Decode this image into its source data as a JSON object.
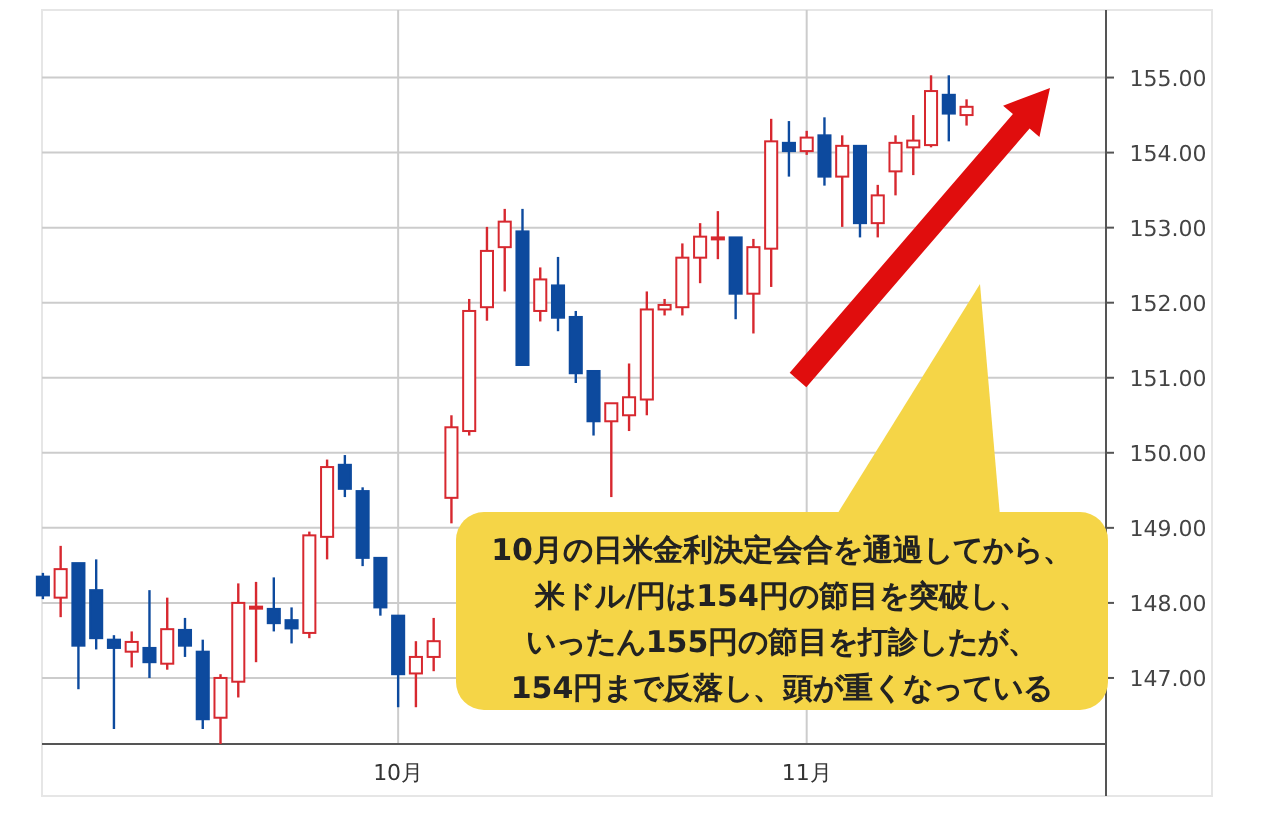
{
  "chart_data": {
    "type": "candlestick",
    "categories": [
      null,
      null,
      null,
      null,
      null,
      null,
      null,
      null,
      null,
      null,
      null,
      null,
      null,
      null,
      null,
      null,
      null,
      null,
      null,
      null,
      "10月",
      null,
      null,
      null,
      null,
      null,
      null,
      null,
      null,
      null,
      null,
      null,
      null,
      null,
      null,
      null,
      null,
      null,
      null,
      null,
      null,
      null,
      null,
      "11月",
      null,
      null,
      null,
      null,
      null,
      null,
      null,
      null,
      null,
      null,
      null,
      null,
      null,
      null,
      null,
      null
    ],
    "ohlc": [
      [
        148.35,
        148.4,
        148.05,
        148.1
      ],
      [
        148.07,
        148.76,
        147.81,
        148.45
      ],
      [
        148.53,
        148.53,
        146.85,
        147.43
      ],
      [
        148.17,
        148.58,
        147.38,
        147.53
      ],
      [
        147.51,
        147.57,
        146.32,
        147.4
      ],
      [
        147.35,
        147.62,
        147.14,
        147.48
      ],
      [
        147.4,
        148.17,
        147.0,
        147.21
      ],
      [
        147.19,
        148.07,
        147.11,
        147.65
      ],
      [
        147.64,
        147.8,
        147.28,
        147.43
      ],
      [
        147.35,
        147.51,
        146.32,
        146.45
      ],
      [
        146.47,
        147.05,
        146.12,
        147.0
      ],
      [
        146.95,
        148.26,
        146.74,
        148.0
      ],
      [
        147.93,
        148.28,
        147.21,
        147.95
      ],
      [
        147.92,
        148.34,
        147.62,
        147.73
      ],
      [
        147.77,
        147.94,
        147.46,
        147.66
      ],
      [
        147.6,
        148.95,
        147.53,
        148.9
      ],
      [
        148.88,
        149.91,
        148.58,
        149.81
      ],
      [
        149.84,
        149.97,
        149.41,
        149.52
      ],
      [
        149.49,
        149.54,
        148.49,
        148.6
      ],
      [
        148.6,
        148.6,
        147.83,
        147.94
      ],
      [
        147.83,
        147.83,
        146.61,
        147.05
      ],
      [
        147.06,
        147.49,
        146.61,
        147.28
      ],
      [
        147.28,
        147.8,
        147.09,
        147.49
      ],
      [
        149.4,
        150.5,
        149.06,
        150.34
      ],
      [
        150.29,
        152.05,
        150.23,
        151.89
      ],
      [
        151.94,
        153.01,
        151.76,
        152.69
      ],
      [
        152.74,
        153.25,
        152.15,
        153.08
      ],
      [
        152.95,
        153.25,
        151.17,
        151.17
      ],
      [
        151.89,
        152.47,
        151.75,
        152.31
      ],
      [
        152.23,
        152.61,
        151.62,
        151.8
      ],
      [
        151.81,
        151.89,
        150.93,
        151.06
      ],
      [
        151.09,
        151.09,
        150.23,
        150.42
      ],
      [
        150.42,
        150.66,
        149.41,
        150.66
      ],
      [
        150.5,
        151.19,
        150.29,
        150.74
      ],
      [
        150.71,
        152.15,
        150.5,
        151.91
      ],
      [
        151.91,
        152.05,
        151.83,
        151.97
      ],
      [
        151.94,
        152.79,
        151.83,
        152.6
      ],
      [
        152.6,
        153.06,
        152.26,
        152.88
      ],
      [
        152.86,
        153.22,
        152.58,
        152.87
      ],
      [
        152.87,
        152.87,
        151.78,
        152.12
      ],
      [
        152.12,
        152.85,
        151.59,
        152.74
      ],
      [
        152.72,
        154.45,
        152.21,
        154.15
      ],
      [
        154.13,
        154.42,
        153.68,
        154.02
      ],
      [
        154.02,
        154.29,
        153.97,
        154.2
      ],
      [
        154.23,
        154.47,
        153.56,
        153.68
      ],
      [
        153.68,
        154.23,
        153.01,
        154.09
      ],
      [
        154.09,
        154.09,
        152.87,
        153.06
      ],
      [
        153.06,
        153.57,
        152.87,
        153.43
      ],
      [
        153.75,
        154.23,
        153.43,
        154.13
      ],
      [
        154.07,
        154.5,
        153.7,
        154.16
      ],
      [
        154.1,
        155.03,
        154.07,
        154.82
      ],
      [
        154.77,
        155.03,
        154.15,
        154.52
      ],
      [
        154.5,
        154.71,
        154.36,
        154.61
      ],
      null,
      null,
      null,
      null,
      null,
      null,
      null
    ],
    "colors": [
      "#0d4a9e",
      "#d7282f",
      "#0d4a9e",
      "#0d4a9e",
      "#0d4a9e",
      "#d7282f",
      "#0d4a9e",
      "#d7282f",
      "#0d4a9e",
      "#0d4a9e",
      "#d7282f",
      "#d7282f",
      "#d7282f",
      "#0d4a9e",
      "#0d4a9e",
      "#d7282f",
      "#d7282f",
      "#0d4a9e",
      "#0d4a9e",
      "#0d4a9e",
      "#0d4a9e",
      "#d7282f",
      "#d7282f",
      "#d7282f",
      "#d7282f",
      "#d7282f",
      "#d7282f",
      "#0d4a9e",
      "#d7282f",
      "#0d4a9e",
      "#0d4a9e",
      "#0d4a9e",
      "#d7282f",
      "#d7282f",
      "#d7282f",
      "#d7282f",
      "#d7282f",
      "#d7282f",
      "#d7282f",
      "#0d4a9e",
      "#d7282f",
      "#d7282f",
      "#0d4a9e",
      "#d7282f",
      "#0d4a9e",
      "#d7282f",
      "#0d4a9e",
      "#d7282f",
      "#d7282f",
      "#d7282f",
      "#d7282f",
      "#0d4a9e",
      "#d7282f",
      null,
      null,
      null,
      null,
      null,
      null,
      null
    ],
    "ylim": [
      146.12,
      155.9
    ],
    "yticks": [
      {
        "value": 147,
        "label": "147.00"
      },
      {
        "value": 148,
        "label": "148.00"
      },
      {
        "value": 149,
        "label": "149.00"
      },
      {
        "value": 150,
        "label": "150.00"
      },
      {
        "value": 151,
        "label": "151.00"
      },
      {
        "value": 152,
        "label": "152.00"
      },
      {
        "value": 153,
        "label": "153.00"
      },
      {
        "value": 154,
        "label": "154.00"
      },
      {
        "value": 155,
        "label": "155.00"
      }
    ],
    "grid": true,
    "annotations": [
      "10月の日米金利決定会合を通過してから、",
      "米ドル/円は154円の節目を突破し、",
      "いったん155円の節目を打診したが、",
      "154円まで反落し、頭が重くなっている"
    ]
  }
}
